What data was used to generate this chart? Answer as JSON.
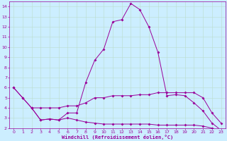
{
  "background_color": "#cceeff",
  "line_color": "#990099",
  "grid_color": "#bbddcc",
  "xlabel": "Windchill (Refroidissement éolien,°C)",
  "xlim": [
    -0.5,
    23.5
  ],
  "ylim": [
    2,
    14.5
  ],
  "xticks": [
    0,
    1,
    2,
    3,
    4,
    5,
    6,
    7,
    8,
    9,
    10,
    11,
    12,
    13,
    14,
    15,
    16,
    17,
    18,
    19,
    20,
    21,
    22,
    23
  ],
  "yticks": [
    2,
    3,
    4,
    5,
    6,
    7,
    8,
    9,
    10,
    11,
    12,
    13,
    14
  ],
  "lines": [
    {
      "x": [
        0,
        1,
        2,
        3,
        4,
        5,
        6,
        7,
        8,
        9,
        10,
        11,
        12,
        13,
        14,
        15,
        16,
        17,
        18,
        19,
        20,
        21,
        22,
        23
      ],
      "y": [
        6.0,
        5.0,
        4.0,
        2.8,
        2.9,
        2.8,
        3.5,
        3.5,
        6.5,
        8.7,
        9.8,
        12.5,
        12.7,
        14.3,
        13.7,
        12.0,
        9.5,
        5.2,
        5.3,
        5.2,
        4.5,
        3.7,
        2.5,
        1.8
      ]
    },
    {
      "x": [
        0,
        1,
        2,
        3,
        4,
        5,
        6,
        7,
        8,
        9,
        10,
        11,
        12,
        13,
        14,
        15,
        16,
        17,
        18,
        19,
        20,
        21,
        22,
        23
      ],
      "y": [
        6.0,
        5.0,
        4.0,
        4.0,
        4.0,
        4.0,
        4.2,
        4.2,
        4.5,
        5.0,
        5.0,
        5.2,
        5.2,
        5.2,
        5.3,
        5.3,
        5.5,
        5.5,
        5.5,
        5.5,
        5.5,
        5.0,
        3.5,
        2.5
      ]
    },
    {
      "x": [
        2,
        3,
        4,
        5,
        6,
        7,
        8,
        9,
        10,
        11,
        12,
        13,
        14,
        15,
        16,
        17,
        18,
        19,
        20,
        21,
        22,
        23
      ],
      "y": [
        4.0,
        2.8,
        2.9,
        2.8,
        3.0,
        2.8,
        2.6,
        2.5,
        2.4,
        2.4,
        2.4,
        2.4,
        2.4,
        2.4,
        2.3,
        2.3,
        2.3,
        2.3,
        2.3,
        2.2,
        2.0,
        1.8
      ]
    }
  ]
}
